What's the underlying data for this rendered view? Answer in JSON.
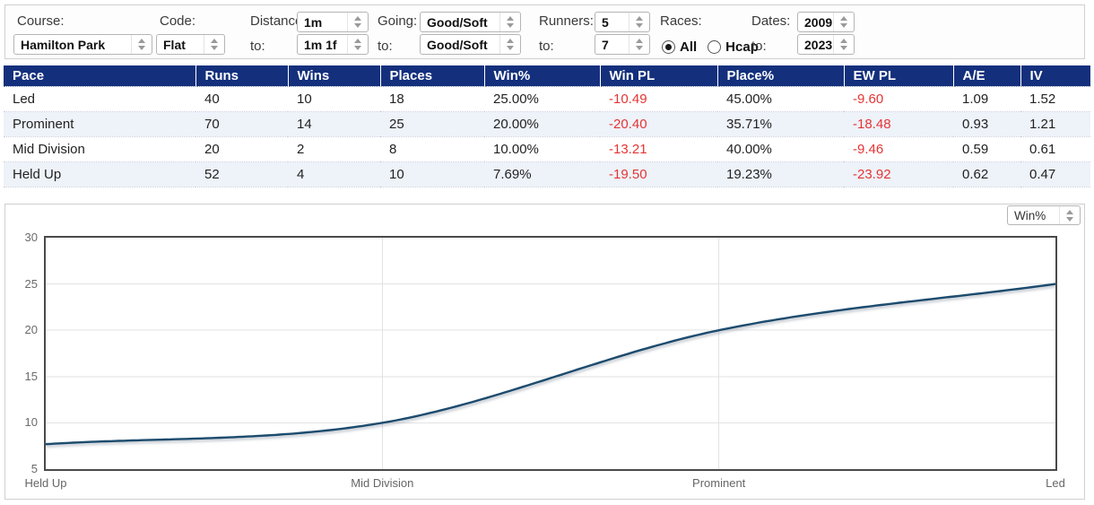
{
  "filters": {
    "course": {
      "label": "Course:",
      "value": "Hamilton Park"
    },
    "code": {
      "label": "Code:",
      "value": "Flat"
    },
    "distance": {
      "label": "Distance:",
      "to_label": "to:",
      "from": "1m",
      "to": "1m 1f"
    },
    "going": {
      "label": "Going:",
      "to_label": "to:",
      "from": "Good/Soft",
      "to": "Good/Soft"
    },
    "runners": {
      "label": "Runners:",
      "to_label": "to:",
      "from": "5",
      "to": "7"
    },
    "races": {
      "label": "Races:",
      "all_label": "All",
      "hcap_label": "Hcap",
      "selected": "All"
    },
    "dates": {
      "label": "Dates:",
      "to_label": "to:",
      "from": "2009",
      "to": "2023"
    }
  },
  "table": {
    "columns": [
      "Pace",
      "Runs",
      "Wins",
      "Places",
      "Win%",
      "Win PL",
      "Place%",
      "EW PL",
      "A/E",
      "IV"
    ],
    "rows": [
      [
        "Led",
        "40",
        "10",
        "18",
        "25.00%",
        "-10.49",
        "45.00%",
        "-9.60",
        "1.09",
        "1.52"
      ],
      [
        "Prominent",
        "70",
        "14",
        "25",
        "20.00%",
        "-20.40",
        "35.71%",
        "-18.48",
        "0.93",
        "1.21"
      ],
      [
        "Mid Division",
        "20",
        "2",
        "8",
        "10.00%",
        "-13.21",
        "40.00%",
        "-9.46",
        "0.59",
        "0.61"
      ],
      [
        "Held Up",
        "52",
        "4",
        "10",
        "7.69%",
        "-19.50",
        "19.23%",
        "-23.92",
        "0.62",
        "0.47"
      ]
    ]
  },
  "chart": {
    "metric_selector_value": "Win%"
  },
  "chart_data": {
    "type": "line",
    "categories": [
      "Held Up",
      "Mid Division",
      "Prominent",
      "Led"
    ],
    "series": [
      {
        "name": "Win%",
        "values": [
          7.69,
          10.0,
          20.0,
          25.0
        ]
      }
    ],
    "title": "",
    "xlabel": "",
    "ylabel": "",
    "ylim": [
      5,
      30
    ],
    "yticks": [
      5,
      10,
      15,
      20,
      25,
      30
    ],
    "grid": true,
    "legend": "none",
    "line_color": "#1c4b6e"
  },
  "colors": {
    "header_bg": "#14307d",
    "negative": "#e53434",
    "alt_row": "#eef2f9",
    "line": "#1c4b6e"
  }
}
